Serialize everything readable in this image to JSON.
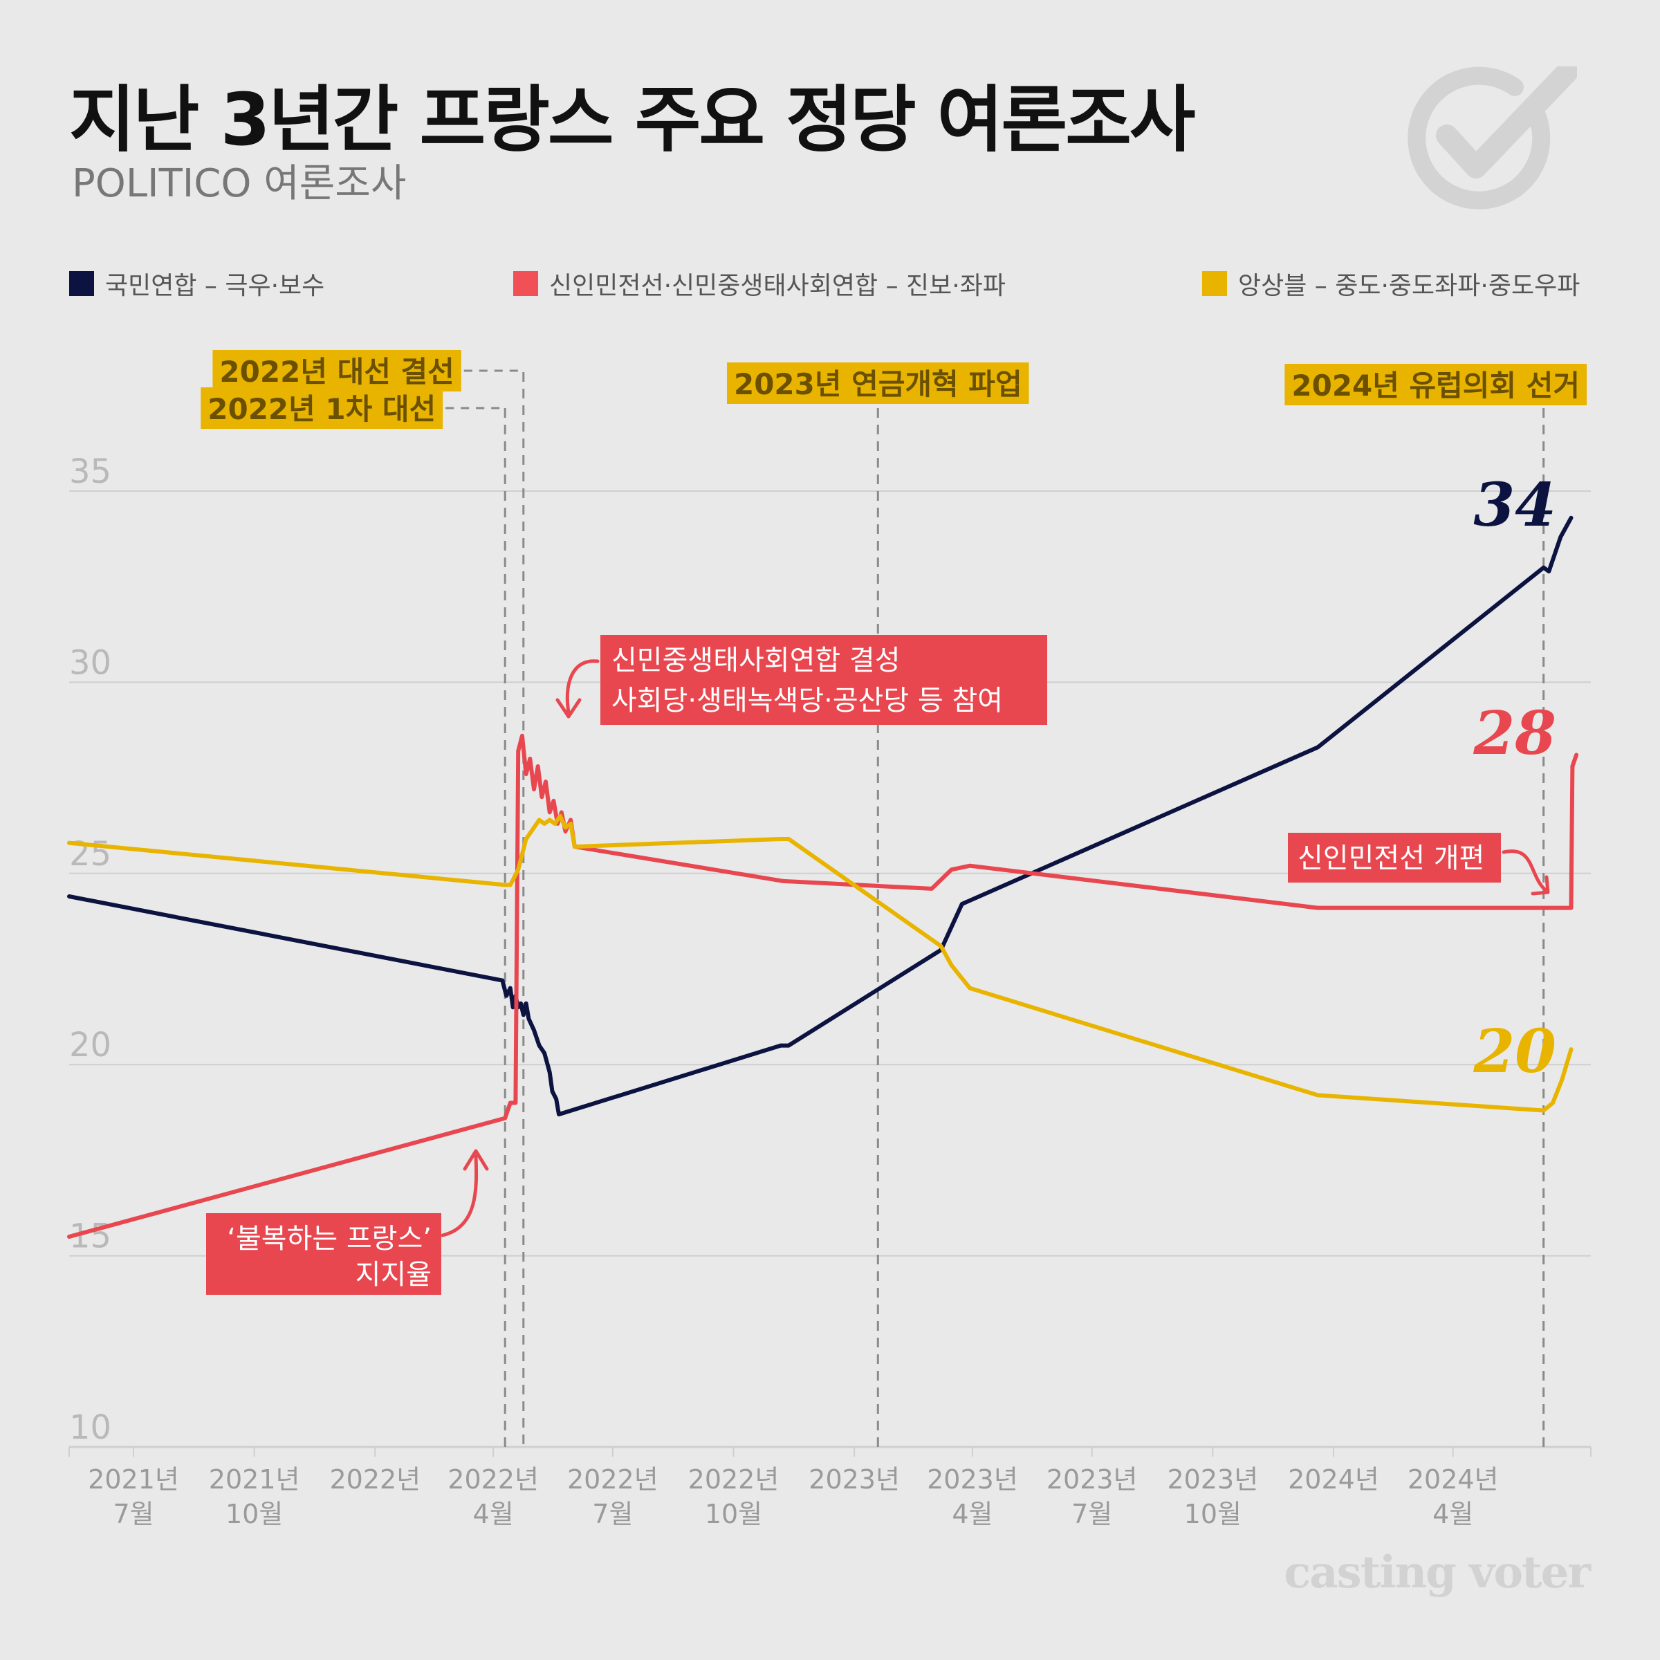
{
  "title": "지난 3년간 프랑스 주요 정당 여론조사",
  "subtitle": "POLITICO 여론조사",
  "brand": "casting voter",
  "legend": [
    {
      "label": "국민연합 – 극우·보수",
      "color": "#0c1340"
    },
    {
      "label": "신인민전선·신민중생태사회연합 – 진보·좌파",
      "color": "#f05056"
    },
    {
      "label": "앙상블 – 중도·중도좌파·중도우파",
      "color": "#e8b400"
    }
  ],
  "chart_data": {
    "type": "line",
    "title": "지난 3년간 프랑스 주요 정당 여론조사",
    "xlabel": "",
    "ylabel": "",
    "ylim": [
      10,
      35
    ],
    "yticks": [
      10,
      15,
      20,
      25,
      30,
      35
    ],
    "xlim": [
      "2021-05-13",
      "2024-07-15"
    ],
    "grid": true,
    "xticks": [
      {
        "date": "2021-07-01",
        "line1": "2021년",
        "line2": "7월"
      },
      {
        "date": "2021-10-01",
        "line1": "2021년",
        "line2": "10월"
      },
      {
        "date": "2022-01-01",
        "line1": "2022년",
        "line2": ""
      },
      {
        "date": "2022-04-01",
        "line1": "2022년",
        "line2": "4월"
      },
      {
        "date": "2022-07-01",
        "line1": "2022년",
        "line2": "7월"
      },
      {
        "date": "2022-10-01",
        "line1": "2022년",
        "line2": "10월"
      },
      {
        "date": "2023-01-01",
        "line1": "2023년",
        "line2": ""
      },
      {
        "date": "2023-04-01",
        "line1": "2023년",
        "line2": "4월"
      },
      {
        "date": "2023-07-01",
        "line1": "2023년",
        "line2": "7월"
      },
      {
        "date": "2023-10-01",
        "line1": "2023년",
        "line2": "10월"
      },
      {
        "date": "2024-01-01",
        "line1": "2024년",
        "line2": ""
      },
      {
        "date": "2024-04-01",
        "line1": "2024년",
        "line2": "4월"
      }
    ],
    "series": [
      {
        "name": "국민연합 – 극우·보수",
        "color": "#0c1340",
        "end_label": "34",
        "points": [
          [
            "2021-05-13",
            24.4
          ],
          [
            "2022-04-08",
            22.2
          ],
          [
            "2022-04-11",
            21.8
          ],
          [
            "2022-04-14",
            22.0
          ],
          [
            "2022-04-16",
            21.5
          ],
          [
            "2022-04-18",
            21.8
          ],
          [
            "2022-04-20",
            21.5
          ],
          [
            "2022-04-22",
            21.6
          ],
          [
            "2022-04-24",
            21.3
          ],
          [
            "2022-04-26",
            21.6
          ],
          [
            "2022-04-28",
            21.2
          ],
          [
            "2022-05-02",
            20.9
          ],
          [
            "2022-05-06",
            20.5
          ],
          [
            "2022-05-10",
            20.3
          ],
          [
            "2022-05-14",
            19.8
          ],
          [
            "2022-05-16",
            19.3
          ],
          [
            "2022-05-19",
            19.1
          ],
          [
            "2022-05-21",
            18.7
          ],
          [
            "2022-11-06",
            20.5
          ],
          [
            "2022-11-12",
            20.5
          ],
          [
            "2023-03-08",
            23.0
          ],
          [
            "2023-03-24",
            24.2
          ],
          [
            "2023-12-20",
            28.3
          ],
          [
            "2024-06-09",
            33.0
          ],
          [
            "2024-06-13",
            32.9
          ],
          [
            "2024-06-22",
            33.8
          ],
          [
            "2024-06-30",
            34.3
          ]
        ]
      },
      {
        "name": "신인민전선·신민중생태사회연합 – 진보·좌파",
        "color": "#e8474f",
        "end_label": "28",
        "points": [
          [
            "2021-05-13",
            15.5
          ],
          [
            "2022-04-10",
            18.6
          ],
          [
            "2022-04-14",
            19.0
          ],
          [
            "2022-04-18",
            19.0
          ],
          [
            "2022-04-20",
            28.2
          ],
          [
            "2022-04-23",
            28.6
          ],
          [
            "2022-04-26",
            27.6
          ],
          [
            "2022-04-29",
            28.0
          ],
          [
            "2022-05-02",
            27.2
          ],
          [
            "2022-05-05",
            27.8
          ],
          [
            "2022-05-08",
            27.0
          ],
          [
            "2022-05-11",
            27.4
          ],
          [
            "2022-05-14",
            26.6
          ],
          [
            "2022-05-17",
            26.9
          ],
          [
            "2022-05-20",
            26.3
          ],
          [
            "2022-05-23",
            26.6
          ],
          [
            "2022-05-26",
            26.1
          ],
          [
            "2022-05-30",
            26.4
          ],
          [
            "2022-06-02",
            25.7
          ],
          [
            "2022-11-08",
            24.8
          ],
          [
            "2023-03-01",
            24.6
          ],
          [
            "2023-03-16",
            25.1
          ],
          [
            "2023-03-30",
            25.2
          ],
          [
            "2023-12-20",
            24.1
          ],
          [
            "2024-06-30",
            24.1
          ],
          [
            "2024-07-01",
            27.8
          ],
          [
            "2024-07-04",
            28.1
          ]
        ]
      },
      {
        "name": "앙상블 – 중도·중도좌파·중도우파",
        "color": "#e8b400",
        "end_label": "20",
        "points": [
          [
            "2021-05-13",
            25.8
          ],
          [
            "2022-04-10",
            24.7
          ],
          [
            "2022-04-14",
            24.7
          ],
          [
            "2022-04-20",
            25.1
          ],
          [
            "2022-04-26",
            25.9
          ],
          [
            "2022-05-02",
            26.2
          ],
          [
            "2022-05-06",
            26.4
          ],
          [
            "2022-05-10",
            26.3
          ],
          [
            "2022-05-14",
            26.4
          ],
          [
            "2022-05-18",
            26.3
          ],
          [
            "2022-05-22",
            26.5
          ],
          [
            "2022-05-26",
            26.2
          ],
          [
            "2022-05-30",
            26.3
          ],
          [
            "2022-06-02",
            25.7
          ],
          [
            "2022-11-06",
            25.9
          ],
          [
            "2022-11-12",
            25.9
          ],
          [
            "2023-03-08",
            23.1
          ],
          [
            "2023-03-16",
            22.6
          ],
          [
            "2023-03-30",
            22.0
          ],
          [
            "2023-12-20",
            19.2
          ],
          [
            "2024-06-09",
            18.8
          ],
          [
            "2024-06-16",
            19.0
          ],
          [
            "2024-06-23",
            19.6
          ],
          [
            "2024-06-30",
            20.4
          ]
        ]
      }
    ],
    "events": [
      {
        "label": "2022년 1차 대선",
        "date": "2022-04-10"
      },
      {
        "label": "2022년 대선 결선",
        "date": "2022-04-24"
      },
      {
        "label": "2023년 연금개혁 파업",
        "date": "2023-01-19"
      },
      {
        "label": "2024년 유럽의회 선거",
        "date": "2024-06-09"
      }
    ],
    "annotations": [
      {
        "lines": [
          "신민중생태사회연합 결성",
          "사회당·생태녹색당·공산당 등 참여"
        ]
      },
      {
        "lines": [
          "‘불복하는 프랑스’",
          "지지율"
        ]
      },
      {
        "lines": [
          "신인민전선 개편"
        ]
      }
    ]
  }
}
